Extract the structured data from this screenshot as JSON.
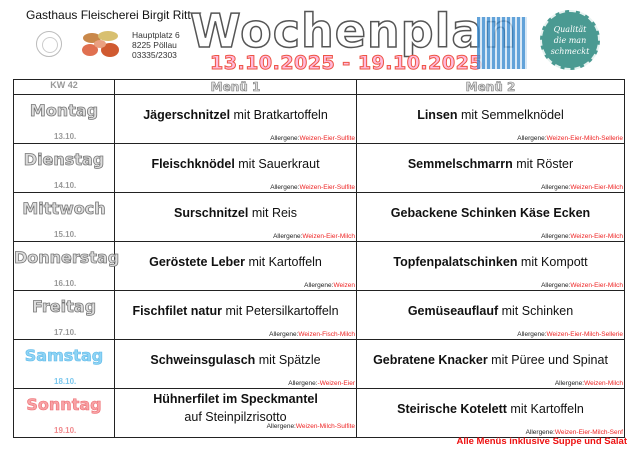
{
  "header": {
    "business": "Gasthaus Fleischerei Birgit Ritter",
    "address": [
      "Hauptplatz 6",
      "8225 Pöllau",
      "03335/2303"
    ],
    "title": "Wochenplan",
    "date_range": "13.10.2025 - 19.10.2025",
    "seal_text": [
      "Qualität",
      "die man",
      "schmeckt"
    ],
    "icons": [
      "plate-cutlery-logo",
      "meat-products-logo",
      "qr-code",
      "quality-seal"
    ]
  },
  "table": {
    "headers": [
      "KW 42",
      "Menü 1",
      "Menü 2"
    ],
    "allergen_label": "Allergene:",
    "rows": [
      {
        "day": "Montag",
        "date": "13.10.",
        "m1_bold": "Jägerschnitzel",
        "m1_rest": " mit Bratkartoffeln",
        "m1_alg": "Weizen-Eier-Sulfite",
        "m2_bold": "Linsen",
        "m2_rest": " mit Semmelknödel",
        "m2_alg": "Weizen-Eier-Milch-Sellerie"
      },
      {
        "day": "Dienstag",
        "date": "14.10.",
        "m1_bold": "Fleischknödel",
        "m1_rest": " mit Sauerkraut",
        "m1_alg": "Weizen-Eier-Sulfite",
        "m2_bold": "Semmelschmarrn",
        "m2_rest": " mit Röster",
        "m2_alg": "Weizen-Eier-Milch"
      },
      {
        "day": "Mittwoch",
        "date": "15.10.",
        "m1_bold": "Surschnitzel",
        "m1_rest": " mit Reis",
        "m1_alg": "Weizen-Eier-Milch",
        "m2_bold": "Gebackene Schinken Käse Ecken",
        "m2_rest": "",
        "m2_alg": "Weizen-Eier-Milch"
      },
      {
        "day": "Donnerstag",
        "date": "16.10.",
        "m1_bold": "Geröstete Leber",
        "m1_rest": " mit Kartoffeln",
        "m1_alg": "Weizen",
        "m2_bold": "Topfenpalatschinken",
        "m2_rest": " mit Kompott",
        "m2_alg": "Weizen-Eier-Milch"
      },
      {
        "day": "Freitag",
        "date": "17.10.",
        "m1_bold": "Fischfilet natur",
        "m1_rest": " mit Petersilkartoffeln",
        "m1_alg": "Weizen-Fisch-Milch",
        "m2_bold": "Gemüseauflauf",
        "m2_rest": " mit Schinken",
        "m2_alg": "Weizen-Eier-Milch-Sellerie"
      },
      {
        "day": "Samstag",
        "date": "18.10.",
        "m1_bold": "Schweinsgulasch",
        "m1_rest": " mit Spätzle",
        "m1_alg": "-Weizen-Eier",
        "m2_bold": "Gebratene Knacker",
        "m2_rest": " mit Püree und Spinat",
        "m2_alg": "Weizen-Milch"
      },
      {
        "day": "Sonntag",
        "date": "19.10.",
        "m1_bold": "Hühnerfilet im Speckmantel",
        "m1_rest": "auf Steinpilzrisotto",
        "m1_alg": "Weizen-Milch-Sulfite",
        "m2_bold": "Steirische Kotelett",
        "m2_rest": " mit Kartoffeln",
        "m2_alg": "Weizen-Eier-Milch-Senf"
      }
    ]
  },
  "footer": "Alle Menüs inklusive Suppe und Salat",
  "colors": {
    "saturday": "#8fd4f5",
    "sunday": "#f7a3a6",
    "allergen": "#e22",
    "footer": "#e11",
    "seal": "#4a9a92"
  }
}
